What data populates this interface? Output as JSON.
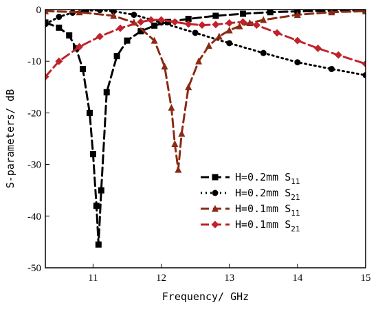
{
  "chart_data": {
    "type": "line",
    "xlabel": "Frequency/ GHz",
    "ylabel": "S-parameters/ dB",
    "xlim": [
      10.3,
      15
    ],
    "ylim": [
      -50,
      0
    ],
    "xticks": [
      11,
      12,
      13,
      14,
      15
    ],
    "yticks": [
      0,
      -10,
      -20,
      -30,
      -40,
      -50
    ],
    "x_tick_labels": [
      "11",
      "12",
      "13",
      "14",
      "15"
    ],
    "y_tick_labels": [
      "0",
      "-10",
      "-20",
      "-30",
      "-40",
      "-50"
    ],
    "grid": false,
    "legend_position": "bottom-right",
    "series": [
      {
        "label_main": "H=0.2mm S",
        "label_sub": "11",
        "color": "#000000",
        "marker": "square",
        "dash": "12,6",
        "x": [
          10.3,
          10.5,
          10.65,
          10.75,
          10.85,
          10.95,
          11.0,
          11.05,
          11.08,
          11.12,
          11.2,
          11.35,
          11.5,
          11.7,
          11.9,
          12.1,
          12.4,
          12.8,
          13.2,
          13.6,
          14.0,
          14.5,
          15.0
        ],
        "y": [
          -2.5,
          -3.5,
          -5.0,
          -7.5,
          -11.5,
          -20,
          -28,
          -38,
          -45.5,
          -35,
          -16,
          -9,
          -6,
          -4.2,
          -3.1,
          -2.4,
          -1.8,
          -1.2,
          -0.8,
          -0.5,
          -0.35,
          -0.2,
          -0.15
        ]
      },
      {
        "label_main": "H=0.2mm S",
        "label_sub": "21",
        "color": "#000000",
        "marker": "circle",
        "dash": "2,5",
        "x": [
          10.3,
          10.5,
          10.7,
          10.9,
          11.1,
          11.3,
          11.6,
          12.0,
          12.5,
          13.0,
          13.5,
          14.0,
          14.5,
          15.0
        ],
        "y": [
          -2.8,
          -1.4,
          -0.6,
          -0.2,
          -0.1,
          -0.3,
          -1.0,
          -2.5,
          -4.5,
          -6.5,
          -8.4,
          -10.2,
          -11.5,
          -12.7
        ]
      },
      {
        "label_main": "H=0.1mm S",
        "label_sub": "11",
        "color": "#8b2a14",
        "marker": "triangle",
        "dash": "12,6",
        "x": [
          10.3,
          10.8,
          11.3,
          11.6,
          11.9,
          12.05,
          12.15,
          12.2,
          12.25,
          12.3,
          12.4,
          12.55,
          12.7,
          12.85,
          13.0,
          13.15,
          13.3,
          13.5,
          14.0,
          14.5,
          15.0
        ],
        "y": [
          -0.3,
          -0.5,
          -1.2,
          -2.5,
          -6.0,
          -11,
          -19,
          -26,
          -31,
          -24,
          -15,
          -10,
          -7,
          -5.2,
          -4.0,
          -3.2,
          -2.6,
          -2.0,
          -1.0,
          -0.5,
          -0.3
        ]
      },
      {
        "label_main": "H=0.1mm S",
        "label_sub": "21",
        "color": "#c0232b",
        "marker": "diamond",
        "dash": "12,6",
        "x": [
          10.3,
          10.5,
          10.8,
          11.1,
          11.4,
          11.7,
          11.85,
          12.0,
          12.2,
          12.4,
          12.6,
          12.8,
          13.0,
          13.2,
          13.4,
          13.7,
          14.0,
          14.3,
          14.6,
          15.0
        ],
        "y": [
          -13,
          -10,
          -7.2,
          -5.2,
          -3.6,
          -2.4,
          -2.0,
          -2.0,
          -2.4,
          -2.8,
          -3.0,
          -2.9,
          -2.6,
          -2.4,
          -3.0,
          -4.5,
          -6.0,
          -7.5,
          -8.8,
          -10.5
        ]
      }
    ]
  }
}
